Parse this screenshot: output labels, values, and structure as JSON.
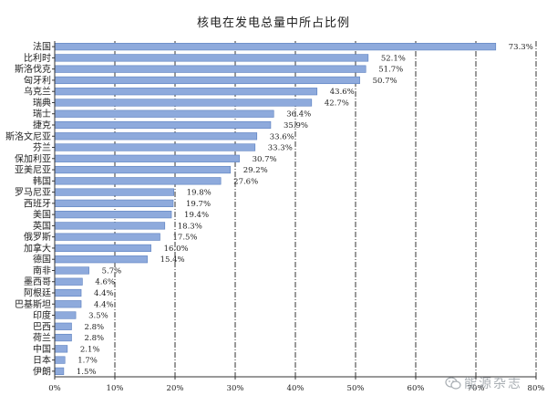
{
  "chart_data": {
    "type": "bar",
    "orientation": "horizontal",
    "title": "核电在发电总量中所占比例",
    "xlabel": "",
    "ylabel": "",
    "xlim": [
      0,
      80
    ],
    "x_ticks": [
      "0%",
      "10%",
      "20%",
      "30%",
      "40%",
      "50%",
      "60%",
      "70%",
      "80%"
    ],
    "grid": "vertical dash-dot lines at each 10%",
    "bar_color": "#8eaadc",
    "bar_edge_color": "#5a7fbf",
    "categories": [
      "法国",
      "比利时",
      "斯洛伐克",
      "匈牙利",
      "乌克兰",
      "瑞典",
      "瑞士",
      "捷克",
      "斯洛文尼亚",
      "芬兰",
      "保加利亚",
      "亚美尼亚",
      "韩国",
      "罗马尼亚",
      "西班牙",
      "美国",
      "英国",
      "俄罗斯",
      "加拿大",
      "德国",
      "南非",
      "墨西哥",
      "阿根廷",
      "巴基斯坦",
      "印度",
      "巴西",
      "荷兰",
      "中国",
      "日本",
      "伊朗"
    ],
    "values": [
      73.3,
      52.1,
      51.7,
      50.7,
      43.6,
      42.7,
      36.4,
      35.9,
      33.6,
      33.3,
      30.7,
      29.2,
      27.6,
      19.8,
      19.7,
      19.4,
      18.3,
      17.5,
      16.0,
      15.4,
      5.7,
      4.6,
      4.4,
      4.4,
      3.5,
      2.8,
      2.8,
      2.1,
      1.7,
      1.5
    ],
    "value_labels": [
      "73.3%",
      "52.1%",
      "51.7%",
      "50.7%",
      "43.6%",
      "42.7%",
      "36.4%",
      "35.9%",
      "33.6%",
      "33.3%",
      "30.7%",
      "29.2%",
      "27.6%",
      "19.8%",
      "19.7%",
      "19.4%",
      "18.3%",
      "17.5%",
      "16.0%",
      "15.4%",
      "5.7%",
      "4.6%",
      "4.4%",
      "4.4%",
      "3.5%",
      "2.8%",
      "2.8%",
      "2.1%",
      "1.7%",
      "1.5%"
    ]
  },
  "watermark": {
    "text": "能源杂志",
    "icon": "wechat-icon"
  }
}
